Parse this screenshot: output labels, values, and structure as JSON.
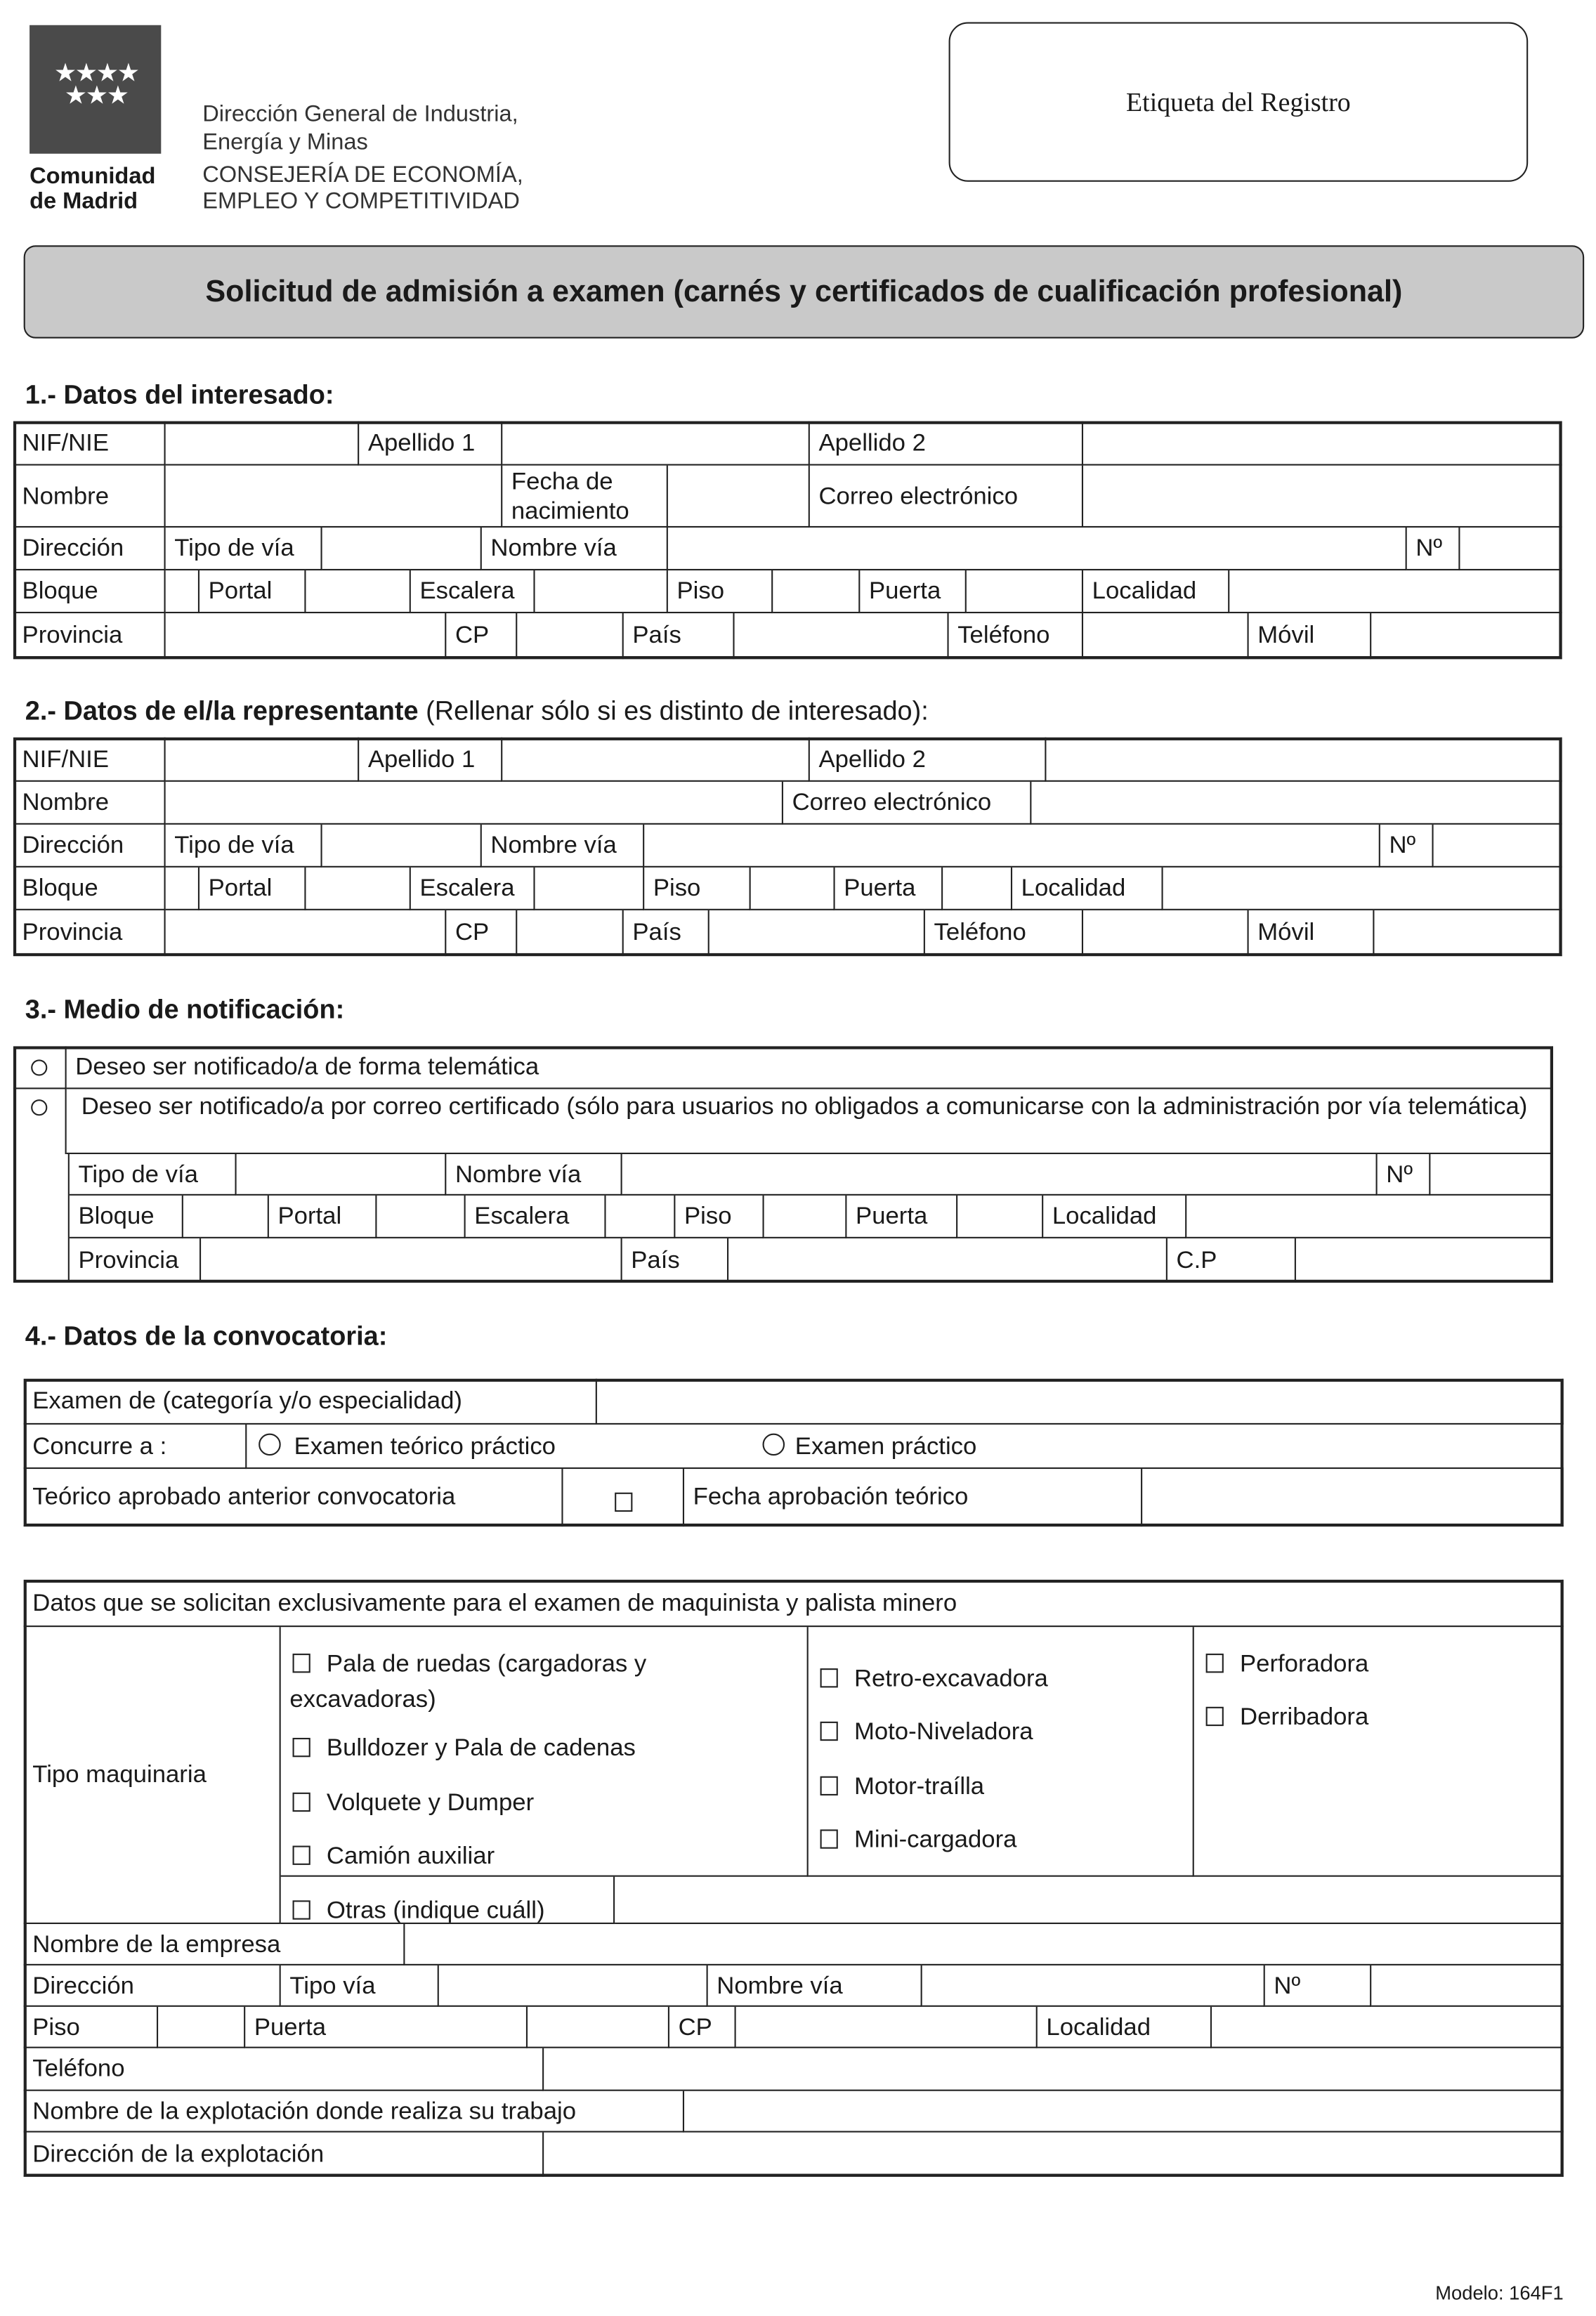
{
  "header": {
    "logo_line1": "Comunidad",
    "logo_line2": "de Madrid",
    "org_line1": "Dirección General de Industria,",
    "org_line2": "Energía y Minas",
    "dept_line1": "CONSEJERÍA DE ECONOMÍA,",
    "dept_line2": "EMPLEO Y COMPETITIVIDAD",
    "registry_label": "Etiqueta del Registro"
  },
  "title": "Solicitud de admisión a examen (carnés y certificados de cualificación profesional)",
  "s1": {
    "heading": "1.- Datos del interesado:",
    "nif": "NIF/NIE",
    "ap1": "Apellido 1",
    "ap2": "Apellido 2",
    "nombre": "Nombre",
    "fecha": "Fecha de nacimiento",
    "correo": "Correo electrónico",
    "direccion": "Dirección",
    "tipo_via": "Tipo de vía",
    "nombre_via": "Nombre vía",
    "num": "Nº",
    "bloque": "Bloque",
    "portal": "Portal",
    "escalera": "Escalera",
    "piso": "Piso",
    "puerta": "Puerta",
    "localidad": "Localidad",
    "provincia": "Provincia",
    "cp": "CP",
    "pais": "País",
    "telefono": "Teléfono",
    "movil": "Móvil"
  },
  "s2": {
    "heading": "2.- Datos de el/la representante",
    "heading_note": "(Rellenar sólo si es distinto de interesado):",
    "nif": "NIF/NIE",
    "ap1": "Apellido 1",
    "ap2": "Apellido 2",
    "nombre": "Nombre",
    "correo": "Correo electrónico",
    "direccion": "Dirección",
    "tipo_via": "Tipo de vía",
    "nombre_via": "Nombre vía",
    "num": "Nº",
    "bloque": "Bloque",
    "portal": "Portal",
    "escalera": "Escalera",
    "piso": "Piso",
    "puerta": "Puerta",
    "localidad": "Localidad",
    "provincia": "Provincia",
    "cp": "CP",
    "pais": "País",
    "telefono": "Teléfono",
    "movil": "Móvil"
  },
  "s3": {
    "heading": "3.- Medio de notificación:",
    "option_telematica": "Deseo ser notificado/a de forma telemática",
    "option_correo": "Deseo ser notificado/a por correo certificado (sólo para usuarios no obligados a comunicarse con la administración por vía telemática)",
    "tipo_via": "Tipo de vía",
    "nombre_via": "Nombre vía",
    "num": "Nº",
    "bloque": "Bloque",
    "portal": "Portal",
    "escalera": "Escalera",
    "piso": "Piso",
    "puerta": "Puerta",
    "localidad": "Localidad",
    "provincia": "Provincia",
    "pais": "País",
    "cp": "C.P"
  },
  "s4": {
    "heading": "4.- Datos de la convocatoria:",
    "examen": "Examen de (categoría y/o especialidad)",
    "concurre": "Concurre a :",
    "option_teorico_practico": "Examen teórico práctico",
    "option_practico": "Examen práctico",
    "teorico_aprobado": "Teórico aprobado  anterior convocatoria",
    "fecha_aprobacion": "Fecha aprobación teórico"
  },
  "s5": {
    "header": "Datos que se solicitan exclusivamente para el examen de maquinista y palista minero",
    "tipo_maquinaria": "Tipo maquinaria",
    "col1": [
      "Pala de ruedas (cargadoras y",
      "excavadoras)",
      "Bulldozer y Pala de cadenas",
      "Volquete y Dumper",
      "Camión auxiliar"
    ],
    "col2": [
      "Retro-excavadora",
      "Moto-Niveladora",
      "Motor-traílla",
      "Mini-cargadora"
    ],
    "col3": [
      "Perforadora",
      "Derribadora"
    ],
    "otras": "Otras (indique cuáll)",
    "nombre_empresa": "Nombre de la empresa",
    "direccion": "Dirección",
    "tipo_via": "Tipo vía",
    "nombre_via": "Nombre vía",
    "num": "Nº",
    "piso": "Piso",
    "puerta": "Puerta",
    "cp": "CP",
    "localidad": "Localidad",
    "telefono": "Teléfono",
    "nombre_explotacion": "Nombre de la explotación donde realiza su trabajo",
    "direccion_explotacion": "Dirección de la explotación"
  },
  "footer": {
    "modelo": "Modelo: 164F1"
  }
}
